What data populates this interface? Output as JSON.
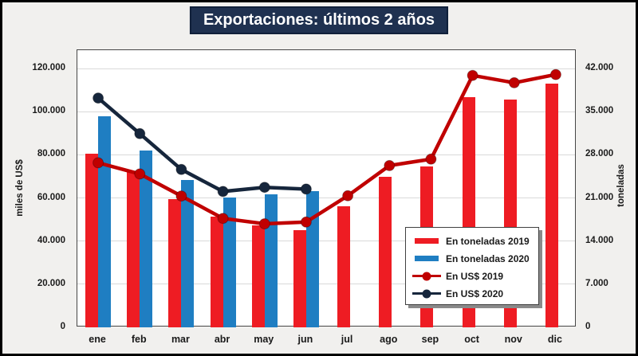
{
  "title": "Exportaciones: últimos 2 años",
  "left_axis": {
    "title": "miles de US$",
    "tick_values": [
      0,
      20000,
      40000,
      60000,
      80000,
      100000,
      120000
    ],
    "ticks": [
      "0",
      "20.000",
      "40.000",
      "60.000",
      "80.000",
      "100.000",
      "120.000"
    ]
  },
  "right_axis": {
    "title": "toneladas",
    "tick_values": [
      0,
      7000,
      14000,
      21000,
      28000,
      35000,
      42000
    ],
    "ticks": [
      "0",
      "7.000",
      "14.000",
      "21.000",
      "28.000",
      "35.000",
      "42.000"
    ]
  },
  "chart_data": {
    "type": "bar",
    "subtype": "combo bar+line, dual axis",
    "title": "Exportaciones: últimos 2 años",
    "categories": [
      "ene",
      "feb",
      "mar",
      "abr",
      "may",
      "jun",
      "jul",
      "ago",
      "sep",
      "oct",
      "nov",
      "dic"
    ],
    "series": [
      {
        "name": "En toneladas 2019",
        "type": "bar",
        "axis": "right",
        "color": "#EE1C23",
        "values": [
          28200,
          25300,
          20800,
          18000,
          16500,
          15800,
          19700,
          24400,
          26100,
          37300,
          37000,
          39600
        ]
      },
      {
        "name": "En toneladas 2020",
        "type": "bar",
        "axis": "right",
        "color": "#1F7EC2",
        "values": [
          34200,
          28700,
          23900,
          21100,
          21600,
          22100,
          null,
          null,
          null,
          null,
          null,
          null
        ]
      },
      {
        "name": "En US$ 2019",
        "type": "line",
        "axis": "left",
        "color": "#C00000",
        "values": [
          76300,
          71100,
          60900,
          50500,
          48000,
          48800,
          61000,
          75000,
          78000,
          116800,
          113400,
          117200
        ]
      },
      {
        "name": "En US$ 2020",
        "type": "line",
        "axis": "left",
        "color": "#16263C",
        "values": [
          106300,
          89800,
          73200,
          63000,
          64900,
          64100,
          null,
          null,
          null,
          null,
          null,
          null
        ]
      }
    ],
    "xlabel": "",
    "ylabel_left": "miles de US$",
    "ylabel_right": "toneladas",
    "left_ylim": [
      0,
      120000
    ],
    "right_ylim": [
      0,
      42000
    ],
    "grid": true,
    "legend_position": "inside lower-right"
  },
  "colors": {
    "background": "#F1F0EE",
    "plot_background": "#FFFFFF",
    "title_bg": "#1F3150",
    "title_text": "#FFFFFF",
    "gridline": "#D9D9D9",
    "axis_text": "#1A1A1A",
    "bar_2019": "#EE1C23",
    "bar_2020": "#1F7EC2",
    "line_2019": "#C00000",
    "line_2020": "#16263C"
  }
}
